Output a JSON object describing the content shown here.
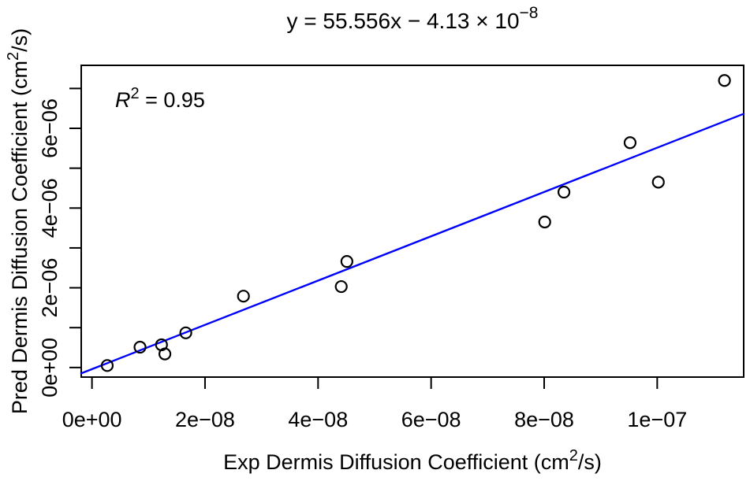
{
  "figure": {
    "background": "#ffffff",
    "foreground": "#000000",
    "title": {
      "base": "y = 55.556x − 4.13 × 10",
      "exponent": "−8"
    },
    "annotation_r2": {
      "variable": "R",
      "superscript": "2",
      "rest": " = 0.95"
    },
    "x_axis_label": {
      "pre": "Exp Dermis Diffusion Coefficient (cm",
      "sup": "2",
      "post": "/s)"
    },
    "y_axis_label": {
      "pre": "Pred Dermis Diffusion Coefficient (cm",
      "sup": "2",
      "post": "/s)"
    }
  },
  "chart_data": {
    "type": "scatter",
    "title": "y = 55.556x − 4.13 × 10⁻⁸",
    "xlabel": "Exp Dermis Diffusion Coefficient (cm²/s)",
    "ylabel": "Pred Dermis Diffusion Coefficient (cm²/s)",
    "annotation": "R² = 0.95",
    "grid": false,
    "legend": false,
    "xlim": [
      -1.9e-09,
      1.153e-07
    ],
    "ylim": [
      -2.4e-07,
      7.58e-06
    ],
    "x_ticks": {
      "values": [
        0,
        2e-08,
        4e-08,
        6e-08,
        8e-08,
        1e-07
      ],
      "labels": [
        "0e+00",
        "2e−08",
        "4e−08",
        "6e−08",
        "8e−08",
        "1e−07"
      ]
    },
    "y_ticks": {
      "values": [
        0,
        1e-06,
        2e-06,
        3e-06,
        4e-06,
        5e-06,
        6e-06,
        7e-06
      ],
      "labels": [
        "0e+00",
        "",
        "2e−06",
        "",
        "4e−06",
        "",
        "6e−06",
        ""
      ]
    },
    "points": [
      {
        "x": 2.7e-09,
        "y": 5e-08
      },
      {
        "x": 8.5e-09,
        "y": 5.1e-07
      },
      {
        "x": 1.23e-08,
        "y": 5.7e-07
      },
      {
        "x": 1.29e-08,
        "y": 3.4e-07
      },
      {
        "x": 1.66e-08,
        "y": 8.7e-07
      },
      {
        "x": 2.68e-08,
        "y": 1.79e-06
      },
      {
        "x": 4.41e-08,
        "y": 2.03e-06
      },
      {
        "x": 4.51e-08,
        "y": 2.66e-06
      },
      {
        "x": 8.01e-08,
        "y": 3.65e-06
      },
      {
        "x": 8.35e-08,
        "y": 4.4e-06
      },
      {
        "x": 9.52e-08,
        "y": 5.64e-06
      },
      {
        "x": 1.002e-07,
        "y": 4.65e-06
      },
      {
        "x": 1.119e-07,
        "y": 7.2e-06
      }
    ],
    "fit_line": {
      "slope": 55.556,
      "intercept": -4.13e-08,
      "color": "#0000ff"
    },
    "point_style": {
      "marker": "open-circle",
      "color": "#000000",
      "radius_px": 7,
      "stroke_px": 2.2
    }
  }
}
